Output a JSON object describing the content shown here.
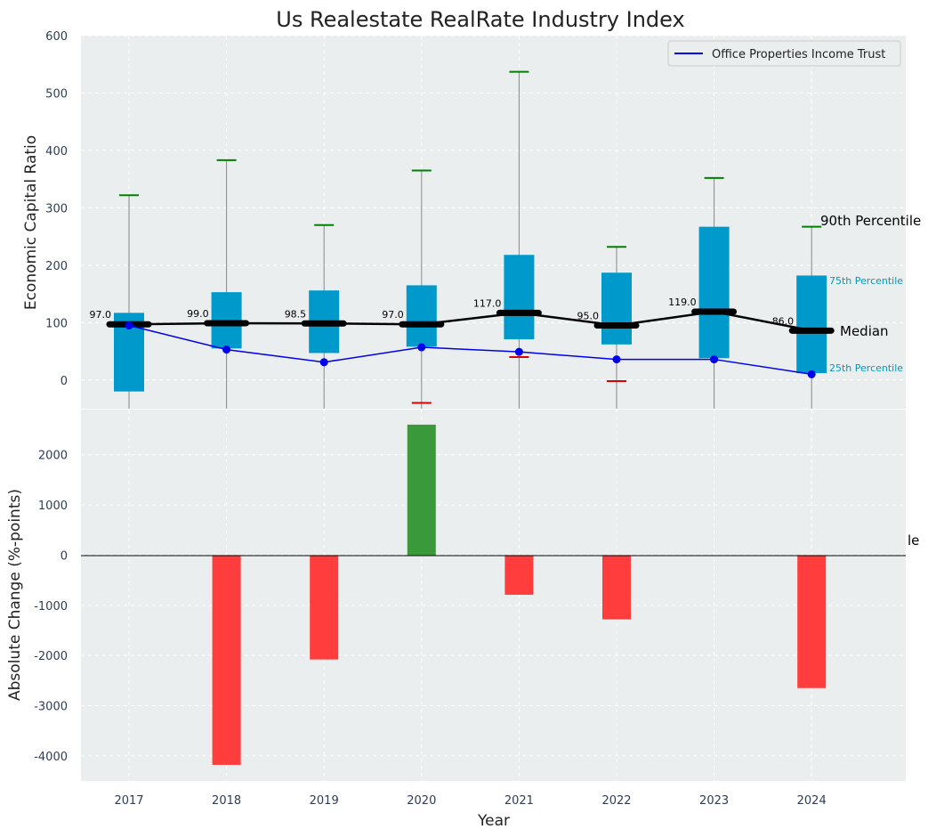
{
  "chart_data": [
    {
      "type": "box",
      "title": "Us Realestate RealRate Industry Index",
      "ylabel": "Economic Capital Ratio",
      "ylim": [
        -50,
        600
      ],
      "yticks": [
        0,
        100,
        200,
        300,
        400,
        500,
        600
      ],
      "categories": [
        "2017",
        "2018",
        "2019",
        "2020",
        "2021",
        "2022",
        "2023",
        "2024"
      ],
      "grid": true,
      "legend": {
        "position": "top-right",
        "entries": [
          "Office Properties Income Trust"
        ]
      },
      "percentile_labels": {
        "p90": "90th Percentile",
        "p75": "75th Percentile",
        "median": "Median",
        "p25": "25th Percentile"
      },
      "p90": [
        322,
        383,
        270,
        365,
        537,
        232,
        352,
        267
      ],
      "p75": [
        117,
        153,
        156,
        165,
        218,
        187,
        267,
        182
      ],
      "median": [
        97.0,
        99.0,
        98.5,
        97.0,
        117.0,
        95.0,
        119.0,
        86.0
      ],
      "median_labels": [
        "97.0",
        "99.0",
        "98.5",
        "97.0",
        "117.0",
        "95.0",
        "119.0",
        "86.0"
      ],
      "p25": [
        -20,
        55,
        47,
        58,
        71,
        62,
        38,
        12
      ],
      "p10": [
        null,
        null,
        null,
        -40,
        40,
        -2,
        null,
        null
      ],
      "series": [
        {
          "name": "Office Properties Income Trust",
          "values": [
            95,
            53,
            31,
            57,
            49,
            36,
            36,
            10
          ],
          "color": "#0000ee"
        }
      ],
      "colors": {
        "box": "#0099cc",
        "median": "#000000",
        "p90_cap": "#008000",
        "p10_cap": "#dd0000",
        "whisker": "#888888"
      }
    },
    {
      "type": "bar",
      "xlabel": "Year",
      "ylabel": "Absolute Change (%-points)",
      "ylim": [
        -4500,
        2900
      ],
      "yticks": [
        -4000,
        -3000,
        -2000,
        -1000,
        0,
        1000,
        2000
      ],
      "categories": [
        "2017",
        "2018",
        "2019",
        "2020",
        "2021",
        "2022",
        "2023",
        "2024"
      ],
      "values": [
        0,
        -4180,
        -2080,
        2600,
        -790,
        -1280,
        0,
        -2650
      ],
      "grid": true,
      "stray_text": "le",
      "colors": {
        "positive": "#3a9a3a",
        "negative": "#ff3d3d"
      }
    }
  ]
}
